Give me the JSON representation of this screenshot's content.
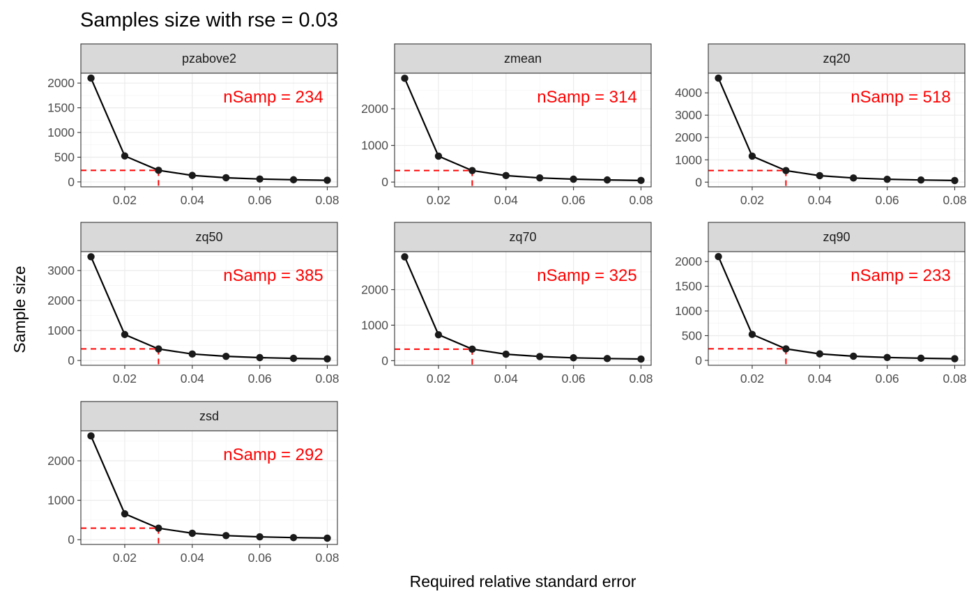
{
  "chart_data": {
    "type": "line",
    "title": "Samples size with rse = 0.03",
    "xlabel": "Required relative standard error",
    "ylabel": "Sample size",
    "x": [
      0.01,
      0.02,
      0.03,
      0.04,
      0.05,
      0.06,
      0.07,
      0.08
    ],
    "xlim": [
      0.007,
      0.083
    ],
    "x_ticks": [
      0.02,
      0.04,
      0.06,
      0.08
    ],
    "x_tick_labels": [
      "0.02",
      "0.04",
      "0.06",
      "0.08"
    ],
    "target_rse": 0.03,
    "grid": true,
    "legend": "none",
    "colors": {
      "line": "#000000",
      "point": "#1a1a1a",
      "reference": "#ff0000",
      "strip": "#d9d9d9"
    },
    "panels": [
      {
        "name": "pzabove2",
        "annotation": "nSamp = 234",
        "nSamp": 234,
        "values": [
          2100,
          525,
          234,
          131,
          84,
          58,
          43,
          33
        ],
        "ylim": [
          -100,
          2200
        ],
        "y_ticks": [
          0,
          500,
          1000,
          1500,
          2000
        ],
        "y_tick_labels": [
          "0",
          "500",
          "1000",
          "1500",
          "2000"
        ]
      },
      {
        "name": "zmean",
        "annotation": "nSamp = 314",
        "nSamp": 314,
        "values": [
          2830,
          708,
          314,
          177,
          113,
          79,
          58,
          44
        ],
        "ylim": [
          -130,
          2970
        ],
        "y_ticks": [
          0,
          1000,
          2000
        ],
        "y_tick_labels": [
          "0",
          "1000",
          "2000"
        ]
      },
      {
        "name": "zq20",
        "annotation": "nSamp = 518",
        "nSamp": 518,
        "values": [
          4660,
          1165,
          518,
          291,
          186,
          129,
          95,
          73
        ],
        "ylim": [
          -210,
          4880
        ],
        "y_ticks": [
          0,
          1000,
          2000,
          3000,
          4000
        ],
        "y_tick_labels": [
          "0",
          "1000",
          "2000",
          "3000",
          "4000"
        ]
      },
      {
        "name": "zq50",
        "annotation": "nSamp = 385",
        "nSamp": 385,
        "values": [
          3460,
          866,
          385,
          216,
          139,
          96,
          71,
          54
        ],
        "ylim": [
          -160,
          3630
        ],
        "y_ticks": [
          0,
          1000,
          2000,
          3000
        ],
        "y_tick_labels": [
          "0",
          "1000",
          "2000",
          "3000"
        ]
      },
      {
        "name": "zq70",
        "annotation": "nSamp = 325",
        "nSamp": 325,
        "values": [
          2925,
          731,
          325,
          183,
          117,
          81,
          60,
          46
        ],
        "ylim": [
          -130,
          3070
        ],
        "y_ticks": [
          0,
          1000,
          2000
        ],
        "y_tick_labels": [
          "0",
          "1000",
          "2000"
        ]
      },
      {
        "name": "zq90",
        "annotation": "nSamp = 233",
        "nSamp": 233,
        "values": [
          2100,
          525,
          233,
          131,
          84,
          58,
          43,
          33
        ],
        "ylim": [
          -100,
          2200
        ],
        "y_ticks": [
          0,
          500,
          1000,
          1500,
          2000
        ],
        "y_tick_labels": [
          "0",
          "500",
          "1000",
          "1500",
          "2000"
        ]
      },
      {
        "name": "zsd",
        "annotation": "nSamp = 292",
        "nSamp": 292,
        "values": [
          2630,
          657,
          292,
          164,
          105,
          73,
          54,
          41
        ],
        "ylim": [
          -120,
          2760
        ],
        "y_ticks": [
          0,
          1000,
          2000
        ],
        "y_tick_labels": [
          "0",
          "1000",
          "2000"
        ]
      }
    ]
  }
}
